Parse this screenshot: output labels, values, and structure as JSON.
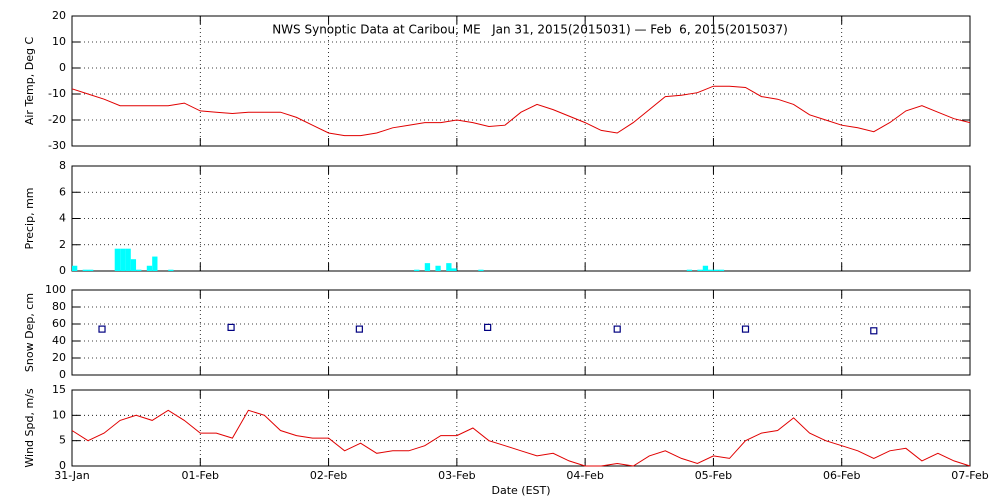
{
  "chart_data": [
    {
      "type": "line",
      "title": "NWS Synoptic Data at Caribou, ME   Jan 31, 2015(2015031) — Feb  6, 2015(2015037)",
      "ylabel": "Air Temp, Deg C",
      "xlim": [
        0,
        7
      ],
      "ylim": [
        -30,
        20
      ],
      "yticks": [
        -30,
        -20,
        -10,
        0,
        10,
        20
      ],
      "grid": true,
      "series": [
        {
          "name": "Air Temp",
          "color": "#e00000",
          "x": [
            0,
            0.125,
            0.25,
            0.375,
            0.5,
            0.625,
            0.75,
            0.875,
            1,
            1.125,
            1.25,
            1.375,
            1.5,
            1.625,
            1.75,
            1.875,
            2,
            2.125,
            2.25,
            2.375,
            2.5,
            2.625,
            2.75,
            2.875,
            3,
            3.125,
            3.25,
            3.375,
            3.5,
            3.625,
            3.75,
            3.875,
            4,
            4.125,
            4.25,
            4.375,
            4.5,
            4.625,
            4.75,
            4.875,
            5,
            5.125,
            5.25,
            5.375,
            5.5,
            5.625,
            5.75,
            5.875,
            6,
            6.125,
            6.25,
            6.375,
            6.5,
            6.625,
            6.75,
            6.875,
            7
          ],
          "values": [
            -8,
            -10,
            -12,
            -14.5,
            -14.5,
            -14.5,
            -14.5,
            -13.5,
            -16.5,
            -17,
            -17.5,
            -17,
            -17,
            -17,
            -19,
            -22,
            -25,
            -26,
            -26,
            -25,
            -23,
            -22,
            -21,
            -21,
            -20,
            -21,
            -22.5,
            -22,
            -17,
            -14,
            -16,
            -18.5,
            -21,
            -24,
            -25,
            -21,
            -16,
            -11,
            -10.5,
            -9.5,
            -7,
            -7,
            -7.5,
            -11,
            -12,
            -14,
            -18,
            -20,
            -22,
            -23,
            -24.5,
            -21,
            -16.5,
            -14.5,
            -17,
            -19.5,
            -21
          ]
        }
      ]
    },
    {
      "type": "bar",
      "ylabel": "Precip, mm",
      "xlim": [
        0,
        7
      ],
      "ylim": [
        0,
        8
      ],
      "yticks": [
        0,
        2,
        4,
        6,
        8
      ],
      "grid": true,
      "series": [
        {
          "name": "Precip",
          "color": "#00ffff",
          "x": [
            0,
            0.083,
            0.125,
            0.333,
            0.375,
            0.417,
            0.458,
            0.5,
            0.583,
            0.625,
            0.75,
            2.667,
            2.75,
            2.833,
            2.917,
            2.958,
            3.167,
            4.792,
            4.875,
            4.917,
            4.958,
            5,
            5.042
          ],
          "values": [
            0.4,
            0.1,
            0.1,
            1.7,
            1.7,
            1.7,
            0.9,
            0.1,
            0.4,
            1.1,
            0.1,
            0.1,
            0.6,
            0.4,
            0.6,
            0.2,
            0.1,
            0.1,
            0.1,
            0.4,
            0.1,
            0.1,
            0.1
          ]
        }
      ]
    },
    {
      "type": "scatter",
      "ylabel": "Snow Dep, cm",
      "xlim": [
        0,
        7
      ],
      "ylim": [
        0,
        100
      ],
      "yticks": [
        0,
        20,
        40,
        60,
        80,
        100
      ],
      "grid": true,
      "series": [
        {
          "name": "Snow Depth",
          "color": "#000080",
          "x": [
            0.234,
            1.24,
            2.24,
            3.24,
            4.25,
            5.25,
            6.25
          ],
          "values": [
            54,
            56,
            54,
            56,
            54,
            54,
            52
          ]
        }
      ]
    },
    {
      "type": "line",
      "ylabel": "Wind Spd, m/s",
      "xlabel": "Date (EST)",
      "xlim": [
        0,
        7
      ],
      "xticks": [
        {
          "value": 0,
          "label": "31-Jan"
        },
        {
          "value": 1,
          "label": "01-Feb"
        },
        {
          "value": 2,
          "label": "02-Feb"
        },
        {
          "value": 3,
          "label": "03-Feb"
        },
        {
          "value": 4,
          "label": "04-Feb"
        },
        {
          "value": 5,
          "label": "05-Feb"
        },
        {
          "value": 6,
          "label": "06-Feb"
        },
        {
          "value": 7,
          "label": "07-Feb"
        }
      ],
      "ylim": [
        0,
        15
      ],
      "yticks": [
        0,
        5,
        10,
        15
      ],
      "grid": true,
      "series": [
        {
          "name": "Wind Speed",
          "color": "#e00000",
          "x": [
            0,
            0.125,
            0.25,
            0.375,
            0.5,
            0.625,
            0.75,
            0.875,
            1,
            1.125,
            1.25,
            1.375,
            1.5,
            1.625,
            1.75,
            1.875,
            2,
            2.125,
            2.25,
            2.375,
            2.5,
            2.625,
            2.75,
            2.875,
            3,
            3.125,
            3.25,
            3.375,
            3.5,
            3.625,
            3.75,
            3.875,
            4,
            4.125,
            4.25,
            4.375,
            4.5,
            4.625,
            4.75,
            4.875,
            5,
            5.125,
            5.25,
            5.375,
            5.5,
            5.625,
            5.75,
            5.875,
            6,
            6.125,
            6.25,
            6.375,
            6.5,
            6.625,
            6.75,
            6.875,
            7
          ],
          "values": [
            7,
            5,
            6.5,
            9,
            10,
            9,
            11,
            9,
            6.5,
            6.5,
            5.5,
            11,
            10,
            7,
            6,
            5.5,
            5.5,
            3,
            4.5,
            2.5,
            3,
            3,
            4,
            6,
            6,
            7.5,
            5,
            4,
            3,
            2,
            2.5,
            1,
            0,
            0,
            0.5,
            0,
            2,
            3,
            1.5,
            0.5,
            2,
            1.5,
            5,
            6.5,
            7,
            9.5,
            6.5,
            5,
            4,
            3,
            1.5,
            3,
            3.5,
            1,
            2.5,
            1,
            0
          ]
        }
      ]
    }
  ]
}
